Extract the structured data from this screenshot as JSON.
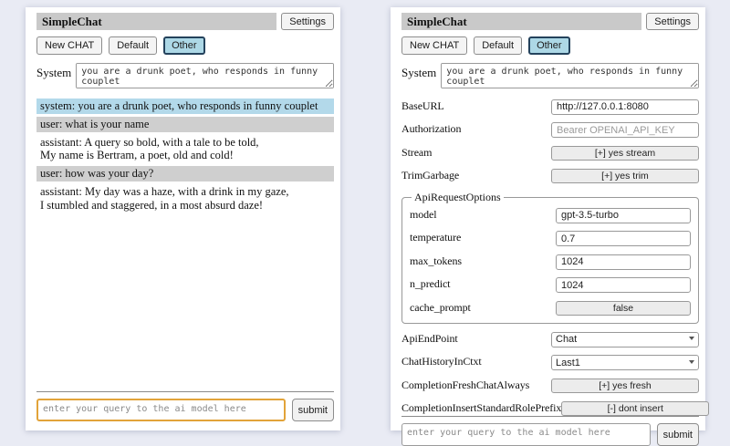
{
  "colors": {
    "page_bg": "#e9ebf4",
    "titlebar_bg": "#c9c9c9",
    "selected_tab_bg": "#add8e6",
    "selected_tab_border": "#24425c",
    "system_msg_bg": "#b3d9ea",
    "user_msg_bg": "#cfcfcf",
    "query_focus_border": "#e2a339"
  },
  "header": {
    "title": "SimpleChat",
    "settings_label": "Settings",
    "tabs": [
      {
        "label": "New CHAT",
        "selected": false
      },
      {
        "label": "Default",
        "selected": false
      },
      {
        "label": "Other",
        "selected": true
      }
    ],
    "system_label": "System",
    "system_prompt": "you are a drunk poet, who responds in funny couplet"
  },
  "chat_panel": {
    "messages": [
      {
        "role": "system",
        "lines": [
          "system: you are a drunk poet, who responds in funny couplet"
        ]
      },
      {
        "role": "user",
        "lines": [
          "user: what is your name"
        ]
      },
      {
        "role": "assistant",
        "lines": [
          "assistant: A query so bold, with a tale to be told,",
          "My name is Bertram, a poet, old and cold!"
        ]
      },
      {
        "role": "user",
        "lines": [
          "user: how was your day?"
        ]
      },
      {
        "role": "assistant",
        "lines": [
          "assistant: My day was a haze, with a drink in my gaze,",
          "I stumbled and staggered, in a most absurd daze!"
        ]
      }
    ]
  },
  "settings_panel": {
    "fields": [
      {
        "label": "BaseURL",
        "type": "text",
        "value": "http://127.0.0.1:8080"
      },
      {
        "label": "Authorization",
        "type": "text",
        "value": "",
        "placeholder": "Bearer OPENAI_API_KEY"
      },
      {
        "label": "Stream",
        "type": "toggle",
        "value": "[+] yes stream"
      },
      {
        "label": "TrimGarbage",
        "type": "toggle",
        "value": "[+] yes trim"
      }
    ],
    "api_request_options": {
      "legend": "ApiRequestOptions",
      "fields": [
        {
          "label": "model",
          "type": "text",
          "value": "gpt-3.5-turbo"
        },
        {
          "label": "temperature",
          "type": "text",
          "value": "0.7"
        },
        {
          "label": "max_tokens",
          "type": "text",
          "value": "1024"
        },
        {
          "label": "n_predict",
          "type": "text",
          "value": "1024"
        },
        {
          "label": "cache_prompt",
          "type": "toggle",
          "value": "false"
        }
      ]
    },
    "fields_bottom": [
      {
        "label": "ApiEndPoint",
        "type": "select",
        "value": "Chat"
      },
      {
        "label": "ChatHistoryInCtxt",
        "type": "select",
        "value": "Last1"
      },
      {
        "label": "CompletionFreshChatAlways",
        "type": "toggle",
        "value": "[+] yes fresh"
      },
      {
        "label": "CompletionInsertStandardRolePrefix",
        "type": "toggle",
        "value": "[-] dont insert"
      }
    ]
  },
  "query": {
    "placeholder": "enter your query to the ai model here",
    "submit_label": "submit"
  }
}
